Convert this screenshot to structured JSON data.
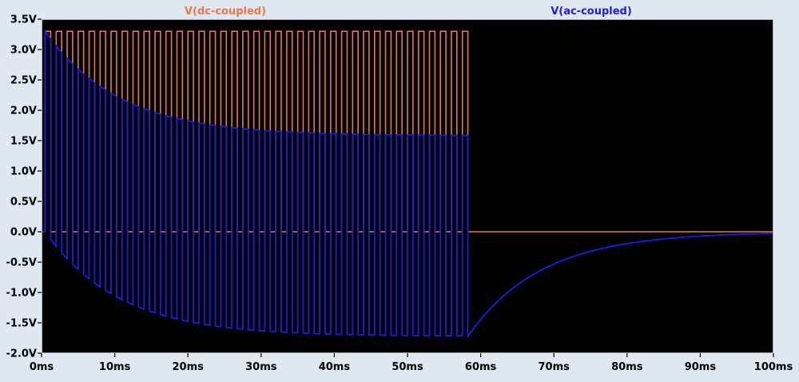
{
  "chart_data": {
    "type": "line",
    "title": "",
    "xlabel": "",
    "ylabel": "",
    "xlim": [
      0,
      100
    ],
    "ylim": [
      -2.0,
      3.5
    ],
    "x_ticks": [
      {
        "value": 0,
        "label": "0ms"
      },
      {
        "value": 10,
        "label": "10ms"
      },
      {
        "value": 20,
        "label": "20ms"
      },
      {
        "value": 30,
        "label": "30ms"
      },
      {
        "value": 40,
        "label": "40ms"
      },
      {
        "value": 50,
        "label": "50ms"
      },
      {
        "value": 60,
        "label": "60ms"
      },
      {
        "value": 70,
        "label": "70ms"
      },
      {
        "value": 80,
        "label": "80ms"
      },
      {
        "value": 90,
        "label": "90ms"
      },
      {
        "value": 100,
        "label": "100ms"
      }
    ],
    "y_ticks": [
      {
        "value": 3.5,
        "label": "3.5V"
      },
      {
        "value": 3.0,
        "label": "3.0V"
      },
      {
        "value": 2.5,
        "label": "2.5V"
      },
      {
        "value": 2.0,
        "label": "2.0V"
      },
      {
        "value": 1.5,
        "label": "1.5V"
      },
      {
        "value": 1.0,
        "label": "1.0V"
      },
      {
        "value": 0.5,
        "label": "0.5V"
      },
      {
        "value": 0.0,
        "label": "0.0V"
      },
      {
        "value": -0.5,
        "label": "-0.5V"
      },
      {
        "value": -1.0,
        "label": "-1.0V"
      },
      {
        "value": -1.5,
        "label": "-1.5V"
      },
      {
        "value": -2.0,
        "label": "-2.0V"
      }
    ],
    "grid": false,
    "background": "#000000",
    "axis_color": "#dfe7f1",
    "legend_position": "top",
    "series": [
      {
        "name": "V(dc-coupled)",
        "color": "#e8784a",
        "kind": "square-wave",
        "high": 3.3,
        "low": 0,
        "period_ms": 1.5,
        "duty": 0.5,
        "pulse_start_ms": 0.5,
        "pulse_stop_ms": 59
      },
      {
        "name": "V(ac-coupled)",
        "color": "#1c1ce6",
        "kind": "ac-coupled-square-wave",
        "high": 3.3,
        "low": 0,
        "period_ms": 1.5,
        "duty": 0.5,
        "pulse_start_ms": 0.5,
        "pulse_stop_ms": 59,
        "time_constant_ms": 10,
        "final_top_v": 1.58,
        "final_bottom_v": -1.72,
        "end_value_v": -0.04
      }
    ]
  }
}
